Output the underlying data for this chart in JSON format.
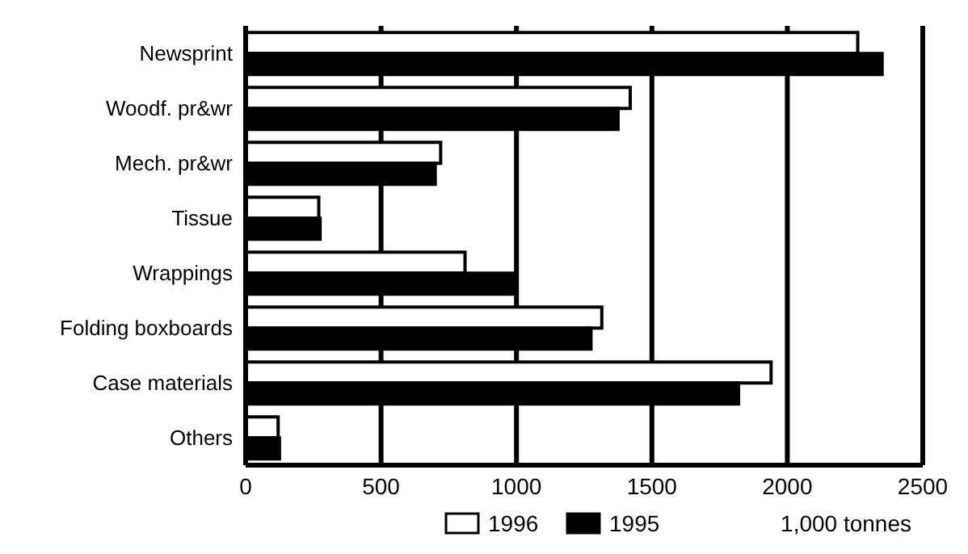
{
  "chart_data": {
    "type": "bar",
    "orientation": "horizontal",
    "categories": [
      "Newsprint",
      "Woodf. pr&wr",
      "Mech. pr&wr",
      "Tissue",
      "Wrappings",
      "Folding boxboards",
      "Case materials",
      "Others"
    ],
    "series": [
      {
        "name": "1996",
        "color": "#ffffff",
        "values": [
          2260,
          1420,
          720,
          270,
          810,
          1315,
          1940,
          120
        ]
      },
      {
        "name": "1995",
        "color": "#000000",
        "values": [
          2350,
          1375,
          700,
          275,
          1000,
          1275,
          1820,
          125
        ]
      }
    ],
    "xlabel": "1,000 tonnes",
    "xlim": [
      0,
      2500
    ],
    "xticks": [
      0,
      500,
      1000,
      1500,
      2000,
      2500
    ],
    "grid": "x",
    "legend": "bottom"
  }
}
